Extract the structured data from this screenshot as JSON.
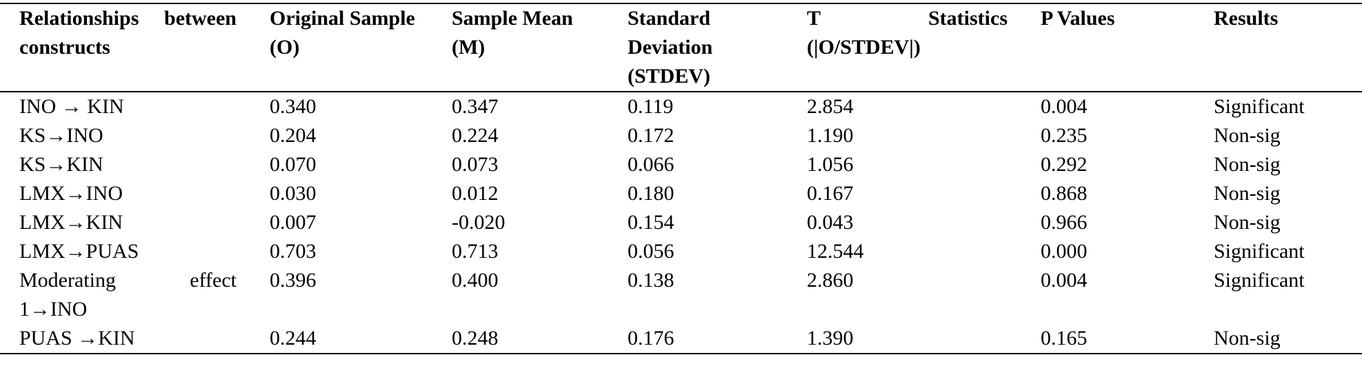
{
  "table": {
    "header": [
      "Relationships between constructs",
      "Original Sample (O)",
      "Sample Mean (M)",
      "Standard Deviation (STDEV)",
      "T Statistics (|O/STDEV|)",
      "P Values",
      "Results"
    ],
    "rows": [
      [
        "INO → KIN",
        "0.340",
        "0.347",
        "0.119",
        "2.854",
        "0.004",
        "Significant"
      ],
      [
        "KS→INO",
        "0.204",
        "0.224",
        "0.172",
        "1.190",
        "0.235",
        "Non-sig"
      ],
      [
        "KS→KIN",
        "0.070",
        "0.073",
        "0.066",
        "1.056",
        "0.292",
        "Non-sig"
      ],
      [
        "LMX→INO",
        "0.030",
        "0.012",
        "0.180",
        "0.167",
        "0.868",
        "Non-sig"
      ],
      [
        "LMX→KIN",
        "0.007",
        "-0.020",
        "0.154",
        "0.043",
        "0.966",
        "Non-sig"
      ],
      [
        "LMX→PUAS",
        "0.703",
        "0.713",
        "0.056",
        "12.544",
        "0.000",
        "Significant"
      ],
      [
        "Moderating effect 1→INO",
        "0.396",
        "0.400",
        "0.138",
        "2.860",
        "0.004",
        "Significant"
      ],
      [
        "PUAS →KIN",
        "0.244",
        "0.248",
        "0.176",
        "1.390",
        "0.165",
        "Non-sig"
      ]
    ]
  }
}
